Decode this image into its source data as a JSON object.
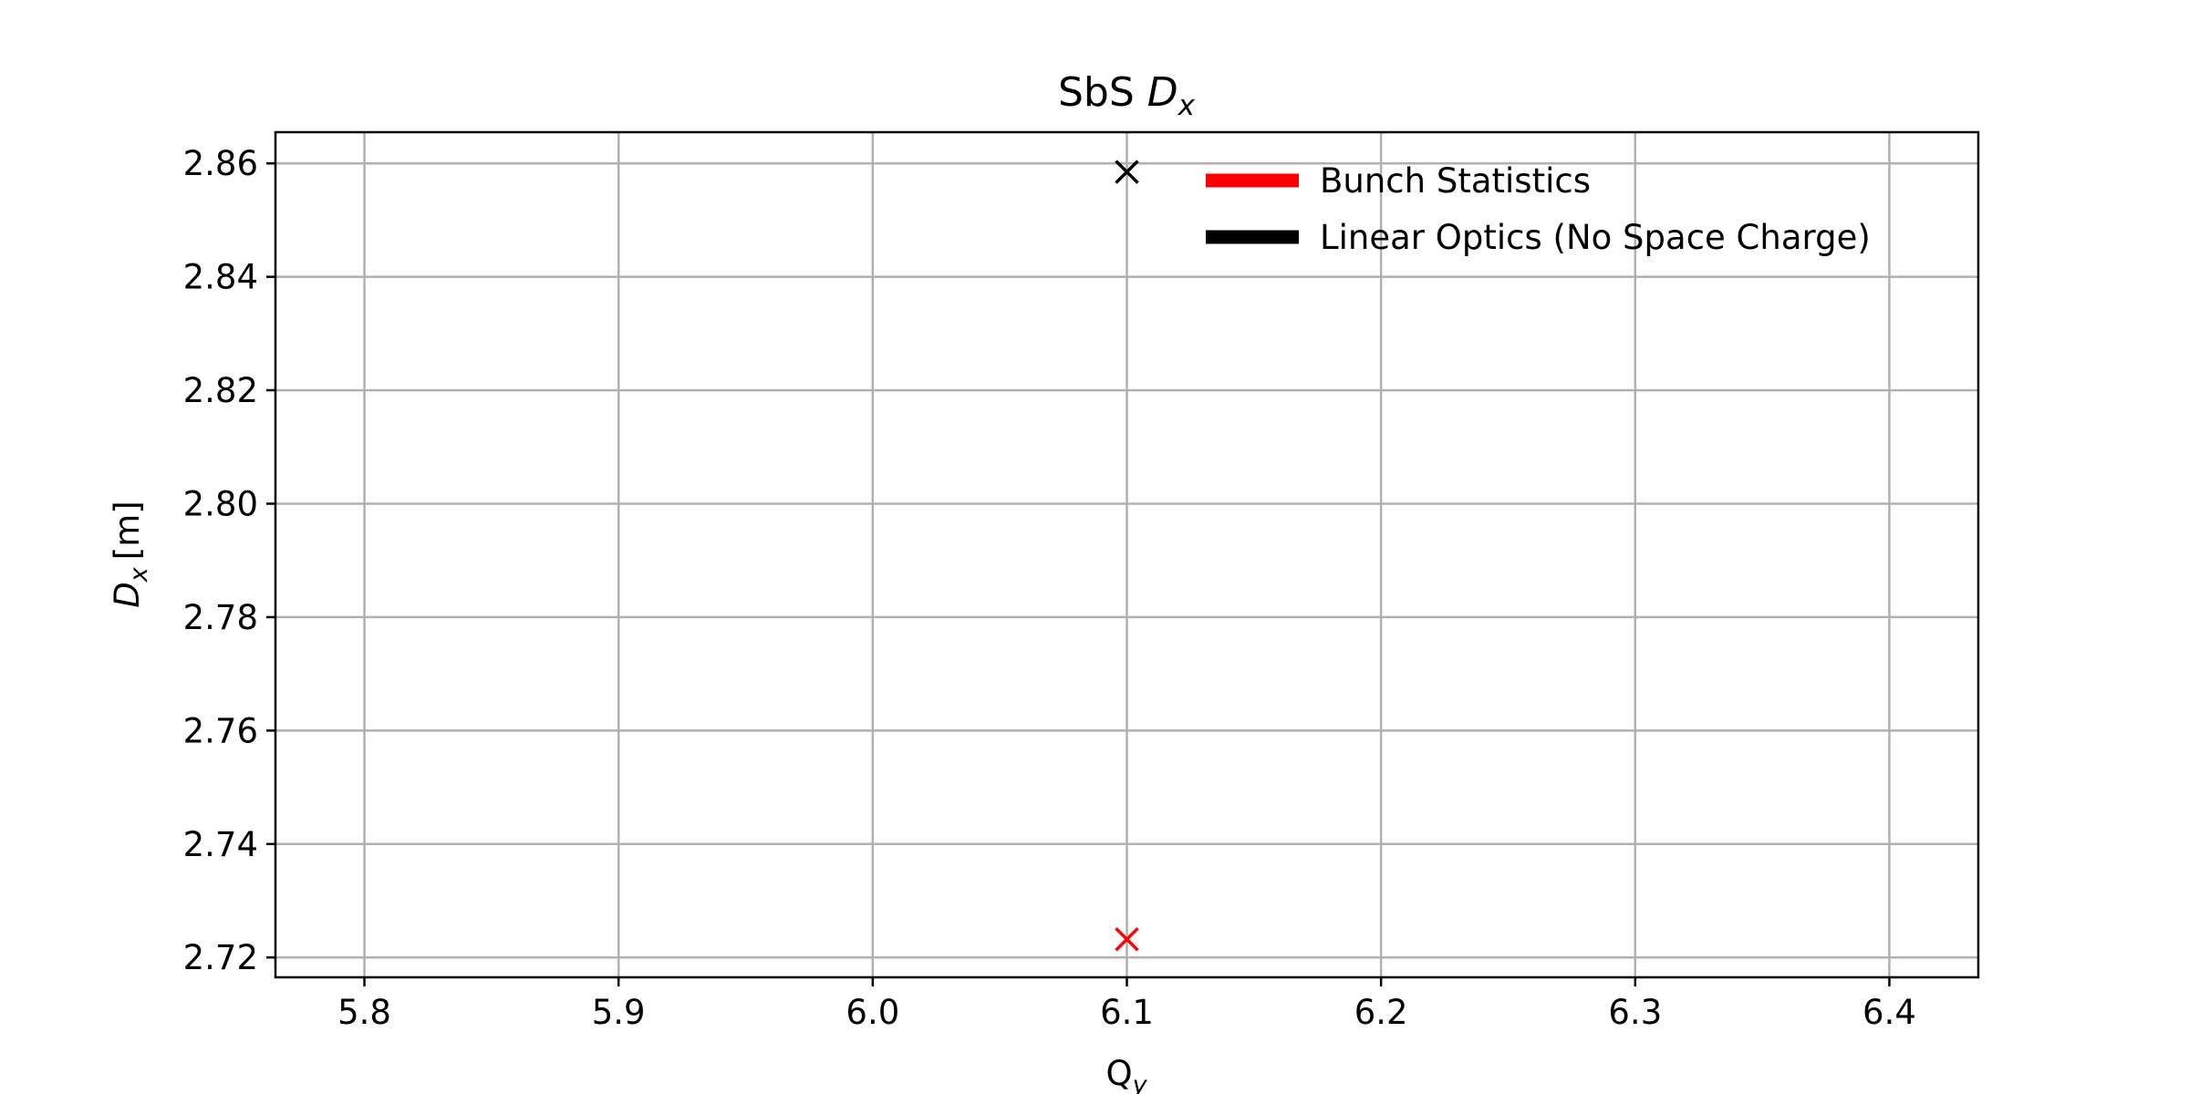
{
  "chart_data": {
    "type": "scatter",
    "title": "SbS",
    "title_symbol": "D",
    "title_symbol_sub": "x",
    "xlabel": "Q",
    "xlabel_sub": "y",
    "ylabel": "[m]",
    "ylabel_symbol": "D",
    "ylabel_symbol_sub": "x",
    "xlim": [
      5.765,
      6.435
    ],
    "ylim": [
      2.7165,
      2.8655
    ],
    "xticks": [
      "5.8",
      "5.9",
      "6.0",
      "6.1",
      "6.2",
      "6.3",
      "6.4"
    ],
    "yticks": [
      "2.72",
      "2.74",
      "2.76",
      "2.78",
      "2.80",
      "2.82",
      "2.84",
      "2.86"
    ],
    "grid": true,
    "legend_position": "top-right",
    "series": [
      {
        "name": "Bunch Statistics",
        "color": "#ff0000",
        "marker": "x",
        "points": [
          {
            "x": 6.1,
            "y": 2.7232
          }
        ]
      },
      {
        "name": "Linear Optics (No Space Charge)",
        "color": "#000000",
        "marker": "x",
        "points": [
          {
            "x": 6.1,
            "y": 2.8585
          }
        ]
      }
    ]
  }
}
